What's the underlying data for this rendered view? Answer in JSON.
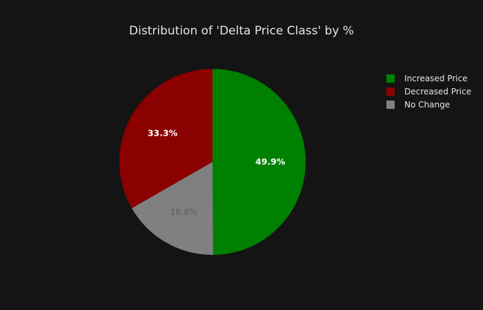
{
  "chart_data": {
    "type": "pie",
    "title": "Distribution of 'Delta Price Class' by %",
    "slices": [
      {
        "label": "Increased Price",
        "value": 49.9,
        "display": "49.9%",
        "color": "#008000",
        "text_color": "#ffffff",
        "text_weight": "bold"
      },
      {
        "label": "No Change",
        "value": 16.8,
        "display": "16.8%",
        "color": "#808080",
        "text_color": "#5a5a5a",
        "text_weight": "normal"
      },
      {
        "label": "Decreased Price",
        "value": 33.3,
        "display": "33.3%",
        "color": "#8b0000",
        "text_color": "#ffffff",
        "text_weight": "bold"
      }
    ],
    "legend_order": [
      "Increased Price",
      "Decreased Price",
      "No Change"
    ],
    "legend_placement": "top-right",
    "direction": "clockwise",
    "start": "top",
    "background": "#141414"
  }
}
